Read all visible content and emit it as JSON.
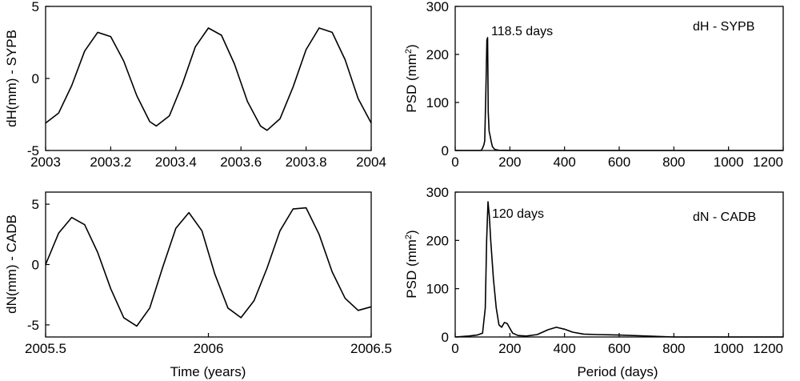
{
  "chart_data": [
    {
      "type": "line",
      "panel": "top-left",
      "ylabel": "dH(mm) - SYPB",
      "xlabel": "",
      "xlim": [
        2003,
        2004
      ],
      "ylim": [
        -5,
        5
      ],
      "xticks": [
        2003,
        2003.2,
        2003.4,
        2003.6,
        2003.8,
        2004
      ],
      "xtick_labels": [
        "2003",
        "2003.2",
        "2003.4",
        "2003.6",
        "2003.8",
        "2004"
      ],
      "yticks": [
        -5,
        0,
        5
      ],
      "ytick_labels": [
        "-5",
        "0",
        "5"
      ],
      "x": [
        2003.0,
        2003.04,
        2003.08,
        2003.12,
        2003.16,
        2003.2,
        2003.24,
        2003.28,
        2003.32,
        2003.34,
        2003.38,
        2003.42,
        2003.46,
        2003.5,
        2003.54,
        2003.58,
        2003.62,
        2003.66,
        2003.68,
        2003.72,
        2003.76,
        2003.8,
        2003.84,
        2003.88,
        2003.92,
        2003.96,
        2004.0
      ],
      "values": [
        -3.1,
        -2.4,
        -0.5,
        1.9,
        3.2,
        2.9,
        1.2,
        -1.2,
        -3.0,
        -3.3,
        -2.6,
        -0.4,
        2.2,
        3.5,
        3.0,
        1.0,
        -1.6,
        -3.3,
        -3.6,
        -2.8,
        -0.6,
        2.0,
        3.5,
        3.2,
        1.3,
        -1.4,
        -3.1
      ]
    },
    {
      "type": "line",
      "panel": "top-right",
      "ylabel": "PSD (mm2)",
      "ylabel_main": "PSD (mm",
      "ylabel_sup": "2",
      "ylabel_close": ")",
      "xlabel": "",
      "xlim": [
        0,
        1200
      ],
      "ylim": [
        0,
        300
      ],
      "xticks": [
        0,
        200,
        400,
        600,
        800,
        1000,
        1200
      ],
      "xtick_labels": [
        "0",
        "200",
        "400",
        "600",
        "800",
        "1000",
        "1200"
      ],
      "yticks": [
        0,
        100,
        200,
        300
      ],
      "ytick_labels": [
        "0",
        "100",
        "200",
        "300"
      ],
      "x": [
        0,
        95,
        100,
        105,
        108,
        112,
        116,
        118.5,
        121,
        124,
        128,
        132,
        136,
        145,
        160,
        200,
        400,
        600,
        800,
        1000,
        1200
      ],
      "values": [
        0,
        0,
        5,
        12,
        20,
        120,
        230,
        235,
        80,
        40,
        30,
        18,
        8,
        2,
        0.5,
        0,
        0,
        0,
        0,
        0,
        0
      ],
      "annotation": "118.5 days",
      "legend": "dH - SYPB"
    },
    {
      "type": "line",
      "panel": "bottom-left",
      "ylabel": "dN(mm) - CADB",
      "xlabel": "Time (years)",
      "xlim": [
        2005.5,
        2006.5
      ],
      "ylim": [
        -6,
        6
      ],
      "xticks": [
        2005.5,
        2006,
        2006.5
      ],
      "xtick_labels": [
        "2005.5",
        "2006",
        "2006.5"
      ],
      "yticks": [
        -5,
        0,
        5
      ],
      "ytick_labels": [
        "-5",
        "0",
        "5"
      ],
      "x": [
        2005.5,
        2005.54,
        2005.58,
        2005.62,
        2005.66,
        2005.7,
        2005.74,
        2005.78,
        2005.82,
        2005.86,
        2005.9,
        2005.94,
        2005.98,
        2006.02,
        2006.06,
        2006.1,
        2006.14,
        2006.18,
        2006.22,
        2006.26,
        2006.3,
        2006.34,
        2006.38,
        2006.42,
        2006.46,
        2006.5
      ],
      "values": [
        0.0,
        2.6,
        3.9,
        3.3,
        1.0,
        -2.0,
        -4.4,
        -5.1,
        -3.6,
        -0.2,
        3.0,
        4.3,
        2.8,
        -0.8,
        -3.6,
        -4.4,
        -3.0,
        -0.3,
        2.8,
        4.6,
        4.7,
        2.5,
        -0.6,
        -2.8,
        -3.8,
        -3.5
      ]
    },
    {
      "type": "line",
      "panel": "bottom-right",
      "ylabel": "PSD (mm2)",
      "ylabel_main": "PSD (mm",
      "ylabel_sup": "2",
      "ylabel_close": ")",
      "xlabel": "Period (days)",
      "xlim": [
        0,
        1200
      ],
      "ylim": [
        0,
        300
      ],
      "xticks": [
        0,
        200,
        400,
        600,
        800,
        1000,
        1200
      ],
      "xtick_labels": [
        "0",
        "200",
        "400",
        "600",
        "800",
        "1000",
        "1200"
      ],
      "yticks": [
        0,
        100,
        200,
        300
      ],
      "ytick_labels": [
        "0",
        "100",
        "200",
        "300"
      ],
      "x": [
        0,
        50,
        80,
        100,
        110,
        115,
        120,
        125,
        130,
        140,
        150,
        160,
        170,
        180,
        190,
        200,
        210,
        230,
        260,
        300,
        340,
        370,
        400,
        430,
        470,
        520,
        600,
        800,
        1000,
        1200
      ],
      "values": [
        0,
        2,
        4,
        8,
        60,
        200,
        280,
        250,
        200,
        120,
        60,
        25,
        20,
        30,
        28,
        18,
        8,
        3,
        2,
        5,
        15,
        20,
        16,
        10,
        6,
        5,
        4,
        0,
        0,
        0
      ],
      "annotation": "120 days",
      "legend": "dN - CADB"
    }
  ]
}
